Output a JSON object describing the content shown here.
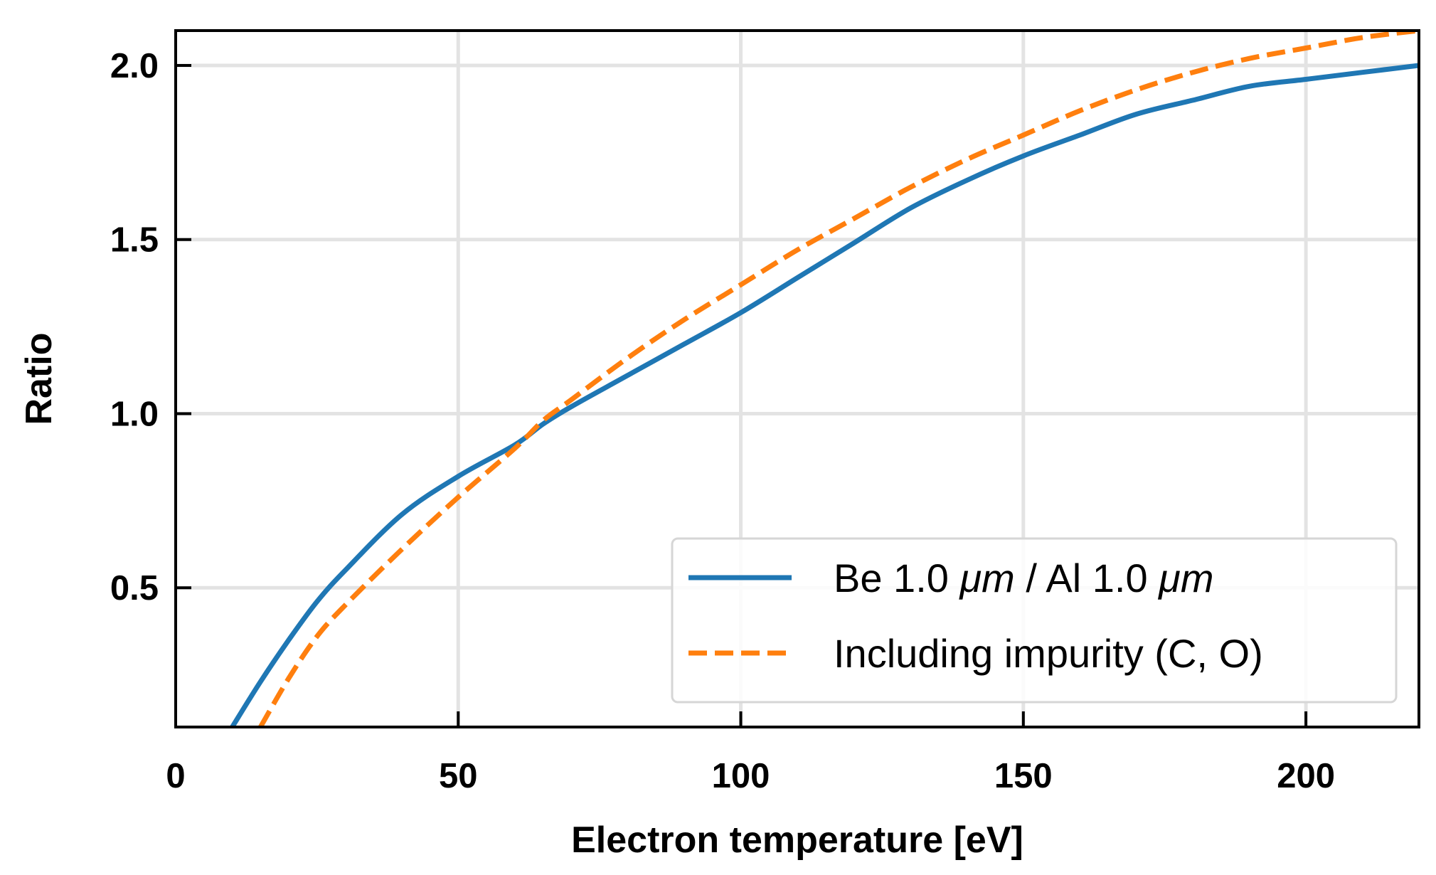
{
  "chart_data": {
    "type": "line",
    "title": "",
    "xlabel": "Electron temperature [eV]",
    "ylabel": "Ratio",
    "xlim": [
      0,
      220
    ],
    "ylim": [
      0.1,
      2.1
    ],
    "xticks": [
      0,
      50,
      100,
      150,
      200
    ],
    "xtick_labels": [
      "0",
      "50",
      "100",
      "150",
      "200"
    ],
    "yticks": [
      0.5,
      1.0,
      1.5,
      2.0
    ],
    "ytick_labels": [
      "0.5",
      "1.0",
      "1.5",
      "2.0"
    ],
    "grid": true,
    "legend_position": "bottom-right",
    "series": [
      {
        "name": "Be 1.0 μm / Al 1.0 μm",
        "legend_parts": [
          "Be 1.0 ",
          "μm",
          " / Al 1.0 ",
          "μm"
        ],
        "color": "#1f77b4",
        "style": "solid",
        "x": [
          10,
          15,
          20,
          25,
          30,
          40,
          50,
          60,
          65,
          70,
          80,
          90,
          100,
          110,
          120,
          130,
          140,
          150,
          160,
          170,
          180,
          190,
          200,
          210,
          220
        ],
        "y": [
          0.1,
          0.23,
          0.35,
          0.46,
          0.55,
          0.71,
          0.82,
          0.91,
          0.97,
          1.02,
          1.11,
          1.2,
          1.29,
          1.39,
          1.49,
          1.59,
          1.67,
          1.74,
          1.8,
          1.86,
          1.9,
          1.94,
          1.96,
          1.98,
          2.0
        ]
      },
      {
        "name": "Including impurity (C, O)",
        "legend_parts": [
          "Including impurity (C, O)"
        ],
        "color": "#ff7f0e",
        "style": "dashed",
        "x": [
          15,
          20,
          25,
          30,
          40,
          50,
          60,
          65,
          70,
          80,
          90,
          100,
          110,
          120,
          130,
          140,
          150,
          160,
          170,
          180,
          190,
          200,
          210,
          220
        ],
        "y": [
          0.1,
          0.24,
          0.36,
          0.45,
          0.61,
          0.76,
          0.9,
          0.98,
          1.04,
          1.16,
          1.27,
          1.37,
          1.47,
          1.56,
          1.65,
          1.73,
          1.8,
          1.87,
          1.93,
          1.98,
          2.02,
          2.05,
          2.08,
          2.1
        ]
      }
    ]
  }
}
